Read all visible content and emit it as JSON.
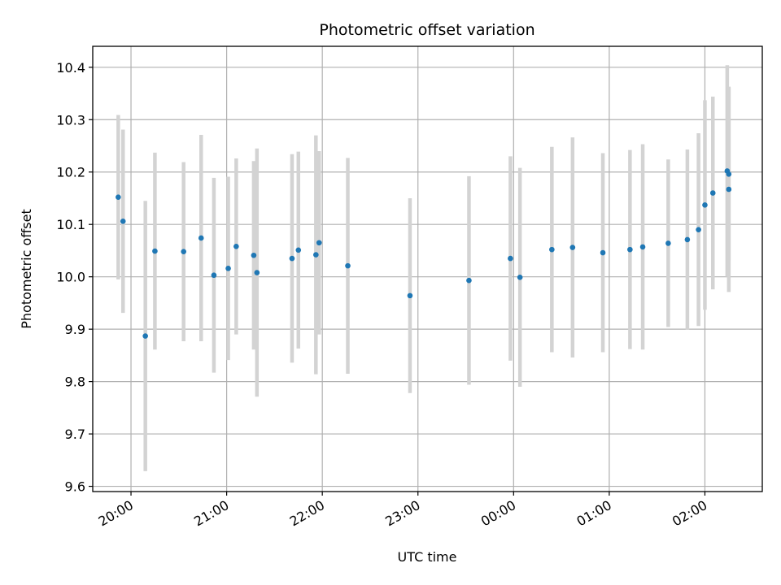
{
  "chart_data": {
    "type": "scatter",
    "title": "Photometric offset variation",
    "xlabel": "UTC time",
    "ylabel": "Photometric offset",
    "grid": true,
    "x_ticks": [
      "20:00",
      "21:00",
      "22:00",
      "23:00",
      "00:00",
      "01:00",
      "02:00"
    ],
    "y_ticks": [
      "9.6",
      "9.7",
      "9.8",
      "9.9",
      "10.0",
      "10.1",
      "10.2",
      "10.3",
      "10.4"
    ],
    "xlim": [
      "19:36",
      "02:36"
    ],
    "ylim": [
      9.59,
      10.44
    ],
    "colors": {
      "points": "#1f77b4",
      "error_bars": "#d3d3d3",
      "grid": "#b0b0b0"
    },
    "series": [
      {
        "points": [
          {
            "time": "19:52",
            "y": 10.152,
            "err": 0.157
          },
          {
            "time": "19:55",
            "y": 10.106,
            "err": 0.175
          },
          {
            "time": "20:09",
            "y": 9.887,
            "err": 0.258
          },
          {
            "time": "20:15",
            "y": 10.049,
            "err": 0.188
          },
          {
            "time": "20:33",
            "y": 10.048,
            "err": 0.171
          },
          {
            "time": "20:44",
            "y": 10.074,
            "err": 0.197
          },
          {
            "time": "20:52",
            "y": 10.003,
            "err": 0.186
          },
          {
            "time": "21:01",
            "y": 10.016,
            "err": 0.175
          },
          {
            "time": "21:06",
            "y": 10.058,
            "err": 0.168
          },
          {
            "time": "21:17",
            "y": 10.041,
            "err": 0.18
          },
          {
            "time": "21:19",
            "y": 10.008,
            "err": 0.237
          },
          {
            "time": "21:41",
            "y": 10.035,
            "err": 0.199
          },
          {
            "time": "21:45",
            "y": 10.051,
            "err": 0.188
          },
          {
            "time": "21:56",
            "y": 10.042,
            "err": 0.228
          },
          {
            "time": "21:58",
            "y": 10.065,
            "err": 0.175
          },
          {
            "time": "22:16",
            "y": 10.021,
            "err": 0.206
          },
          {
            "time": "22:55",
            "y": 9.964,
            "err": 0.186
          },
          {
            "time": "23:32",
            "y": 9.993,
            "err": 0.199
          },
          {
            "time": "23:58",
            "y": 10.035,
            "err": 0.195
          },
          {
            "time": "00:04",
            "y": 9.999,
            "err": 0.209
          },
          {
            "time": "00:24",
            "y": 10.052,
            "err": 0.196
          },
          {
            "time": "00:37",
            "y": 10.056,
            "err": 0.21
          },
          {
            "time": "00:56",
            "y": 10.046,
            "err": 0.19
          },
          {
            "time": "01:13",
            "y": 10.052,
            "err": 0.19
          },
          {
            "time": "01:21",
            "y": 10.057,
            "err": 0.196
          },
          {
            "time": "01:37",
            "y": 10.064,
            "err": 0.16
          },
          {
            "time": "01:49",
            "y": 10.071,
            "err": 0.172
          },
          {
            "time": "01:56",
            "y": 10.09,
            "err": 0.184
          },
          {
            "time": "02:00",
            "y": 10.137,
            "err": 0.2
          },
          {
            "time": "02:05",
            "y": 10.16,
            "err": 0.184
          },
          {
            "time": "02:14",
            "y": 10.202,
            "err": 0.202
          },
          {
            "time": "02:15",
            "y": 10.196,
            "err": 0.165
          },
          {
            "time": "02:15",
            "y": 10.167,
            "err": 0.196
          }
        ]
      }
    ]
  }
}
